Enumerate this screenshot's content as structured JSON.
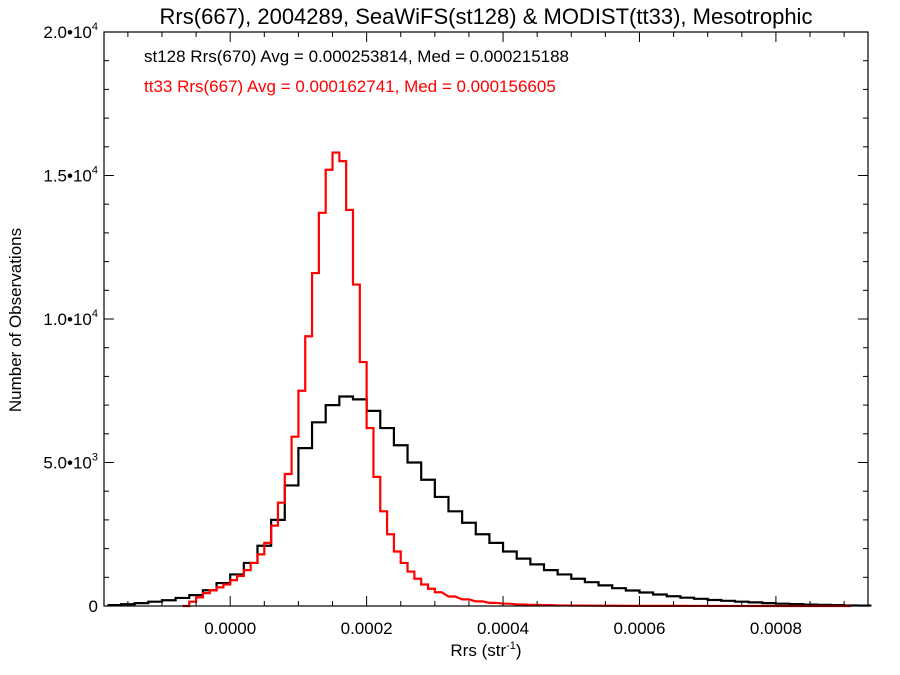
{
  "chart_data": {
    "type": "line",
    "title": "Rrs(667), 2004289, SeaWiFS(st128) & MODIST(tt33), Mesotrophic",
    "xlabel": "Rrs (str",
    "xlabel_sup": "-1",
    "xlabel_end": ")",
    "ylabel": "Number of Observations",
    "xlim": [
      -0.000185,
      0.000935
    ],
    "ylim": [
      0,
      20000
    ],
    "x_ticks": [
      {
        "value": 0.0,
        "label": "0.0000"
      },
      {
        "value": 0.0002,
        "label": "0.0002"
      },
      {
        "value": 0.0004,
        "label": "0.0004"
      },
      {
        "value": 0.0006,
        "label": "0.0006"
      },
      {
        "value": 0.0008,
        "label": "0.0008"
      }
    ],
    "y_ticks": [
      {
        "value": 0,
        "label": "0",
        "exp": ""
      },
      {
        "value": 5000,
        "label": "5.0•10",
        "exp": "3"
      },
      {
        "value": 10000,
        "label": "1.0•10",
        "exp": "4"
      },
      {
        "value": 15000,
        "label": "1.5•10",
        "exp": "4"
      },
      {
        "value": 20000,
        "label": "2.0•10",
        "exp": "4"
      }
    ],
    "grid": false,
    "legend_position": "top-left",
    "series": [
      {
        "name": "st128",
        "label": "st128 Rrs(670) Avg = 0.000253814, Med = 0.000215188",
        "color": "#000000",
        "style": "step",
        "x": [
          -0.00018,
          -0.00016,
          -0.00014,
          -0.00012,
          -0.0001,
          -8e-05,
          -6e-05,
          -4e-05,
          -2e-05,
          0,
          2e-05,
          4e-05,
          6e-05,
          8e-05,
          0.0001,
          0.00012,
          0.00014,
          0.00016,
          0.00018,
          0.0002,
          0.00022,
          0.00024,
          0.00026,
          0.00028,
          0.0003,
          0.00032,
          0.00034,
          0.00036,
          0.00038,
          0.0004,
          0.00042,
          0.00044,
          0.00046,
          0.00048,
          0.0005,
          0.00052,
          0.00054,
          0.00056,
          0.00058,
          0.0006,
          0.00062,
          0.00064,
          0.00066,
          0.00068,
          0.0007,
          0.00072,
          0.00074,
          0.00076,
          0.00078,
          0.0008,
          0.00082,
          0.00084,
          0.00086,
          0.00088,
          0.0009,
          0.00092
        ],
        "y": [
          30,
          60,
          100,
          150,
          200,
          280,
          380,
          550,
          800,
          1100,
          1500,
          2100,
          3000,
          4200,
          5500,
          6400,
          7000,
          7300,
          7200,
          6800,
          6200,
          5600,
          5000,
          4400,
          3800,
          3300,
          2900,
          2500,
          2200,
          1900,
          1650,
          1450,
          1250,
          1100,
          950,
          830,
          720,
          620,
          540,
          470,
          400,
          340,
          290,
          250,
          210,
          180,
          150,
          125,
          100,
          80,
          65,
          50,
          40,
          30,
          20,
          15
        ]
      },
      {
        "name": "tt33",
        "label": "tt33 Rrs(667) Avg = 0.000162741, Med = 0.000156605",
        "color": "#ff0000",
        "style": "step",
        "x": [
          -7e-05,
          -6e-05,
          -5e-05,
          -4e-05,
          -3e-05,
          -2e-05,
          -1e-05,
          0,
          1e-05,
          2e-05,
          3e-05,
          4e-05,
          5e-05,
          6e-05,
          7e-05,
          8e-05,
          9e-05,
          0.0001,
          0.00011,
          0.00012,
          0.00013,
          0.00014,
          0.00015,
          0.00016,
          0.00017,
          0.00018,
          0.00019,
          0.0002,
          0.00021,
          0.00022,
          0.00023,
          0.00024,
          0.00025,
          0.00026,
          0.00027,
          0.00028,
          0.00029,
          0.0003,
          0.00032,
          0.00034,
          0.00036,
          0.00038,
          0.0004,
          0.00042,
          0.00044,
          0.00046,
          0.00048,
          0.0005,
          0.00055,
          0.0006,
          0.00065,
          0.0007,
          0.0008,
          0.0009
        ],
        "y": [
          0,
          150,
          300,
          450,
          550,
          650,
          750,
          900,
          1050,
          1250,
          1500,
          1800,
          2200,
          2800,
          3600,
          4600,
          5900,
          7500,
          9400,
          11600,
          13700,
          15200,
          15800,
          15500,
          13800,
          11200,
          8500,
          6200,
          4500,
          3300,
          2500,
          1900,
          1500,
          1200,
          950,
          750,
          600,
          480,
          330,
          230,
          160,
          110,
          80,
          55,
          40,
          30,
          20,
          15,
          8,
          5,
          3,
          2,
          1,
          0
        ]
      }
    ]
  }
}
